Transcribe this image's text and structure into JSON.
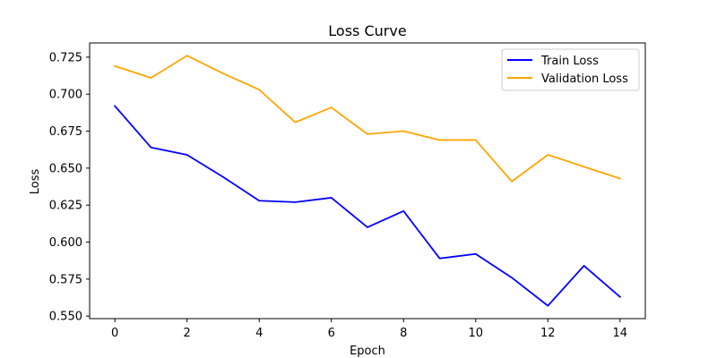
{
  "chart_data": {
    "type": "line",
    "title": "Loss Curve",
    "xlabel": "Epoch",
    "ylabel": "Loss",
    "x": [
      0,
      1,
      2,
      3,
      4,
      5,
      6,
      7,
      8,
      9,
      10,
      11,
      12,
      13,
      14
    ],
    "series": [
      {
        "name": "Train Loss",
        "color": "#0000ff",
        "values": [
          0.692,
          0.664,
          0.659,
          0.644,
          0.628,
          0.627,
          0.63,
          0.61,
          0.621,
          0.589,
          0.592,
          0.576,
          0.557,
          0.584,
          0.563
        ]
      },
      {
        "name": "Validation Loss",
        "color": "#ffa500",
        "values": [
          0.719,
          0.711,
          0.726,
          0.714,
          0.703,
          0.681,
          0.691,
          0.673,
          0.675,
          0.669,
          0.669,
          0.641,
          0.659,
          0.651,
          0.643
        ]
      }
    ],
    "xlim": [
      -0.7,
      14.7
    ],
    "ylim": [
      0.5483,
      0.7346
    ],
    "xticks": [
      0,
      2,
      4,
      6,
      8,
      10,
      12,
      14
    ],
    "xtick_labels": [
      "0",
      "2",
      "4",
      "6",
      "8",
      "10",
      "12",
      "14"
    ],
    "yticks": [
      0.55,
      0.575,
      0.6,
      0.625,
      0.65,
      0.675,
      0.7,
      0.725
    ],
    "ytick_labels": [
      "0.550",
      "0.575",
      "0.600",
      "0.625",
      "0.650",
      "0.675",
      "0.700",
      "0.725"
    ],
    "grid": false,
    "legend_position": "top-right"
  }
}
